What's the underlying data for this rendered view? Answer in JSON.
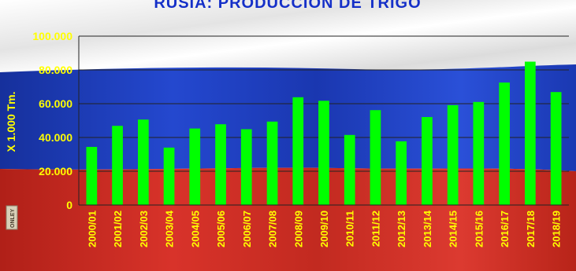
{
  "colors": {
    "flag_white": "#f2f2f2",
    "flag_blue": "#1a3cbb",
    "flag_red": "#c8281e",
    "bar_fill": "#00ff00",
    "text_yellow": "#ffff00",
    "title_blue": "#1530c8",
    "axis_line": "#222222"
  },
  "logo": {
    "text": "ONLEY"
  },
  "chart_data": {
    "type": "bar",
    "title": "RUSIA: PRODUCCION DE TRIGO",
    "ylabel": "X 1.000 Tm.",
    "xlabel": "",
    "categories": [
      "2000/01",
      "2001/02",
      "2002/03",
      "2003/04",
      "2004/05",
      "2005/06",
      "2006/07",
      "2007/08",
      "2008/09",
      "2009/10",
      "2010/11",
      "2011/12",
      "2012/13",
      "2013/14",
      "2014/15",
      "2015/16",
      "2016/17",
      "2017/18",
      "2018/19"
    ],
    "values": [
      34400,
      46900,
      50600,
      34000,
      45300,
      47800,
      44900,
      49400,
      63800,
      61700,
      41500,
      56200,
      37700,
      52100,
      59100,
      61000,
      72500,
      84900,
      66900
    ],
    "ylim": [
      0,
      100000
    ],
    "yticks": [
      0,
      20000,
      40000,
      60000,
      80000,
      100000
    ],
    "ytick_labels": [
      "0",
      "20.000",
      "40.000",
      "60.000",
      "80.000",
      "100.000"
    ],
    "grid": true,
    "legend": "none"
  }
}
